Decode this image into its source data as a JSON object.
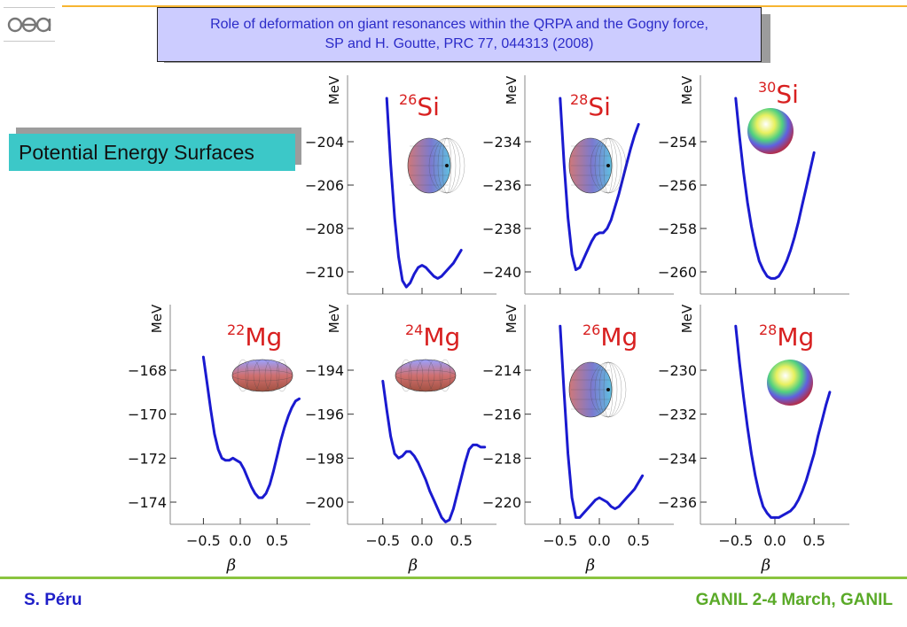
{
  "header": {
    "logo_text": "cea",
    "title_line1": "Role of deformation on giant resonances within the QRPA and the Gogny force,",
    "title_line2": "SP and H. Goutte, PRC 77, 044313 (2008)"
  },
  "section_label": "Potential Energy Surfaces",
  "footer": {
    "author": "S. Péru",
    "event": "GANIL 2-4 March, GANIL"
  },
  "colors": {
    "curve": "#1a1ad0",
    "nucleus_label": "#d82020",
    "title_text": "#2b2bc8",
    "title_bg": "#ccccff",
    "section_bg": "#3cc8c8",
    "footer_left": "#1e1ec8",
    "footer_right": "#5aaa28",
    "top_rule": "#f7b531",
    "bottom_rule": "#8ac43f"
  },
  "chart_data": [
    {
      "type": "line",
      "mass": "26",
      "element": "Si",
      "shape_icon": "oblate-spheroid-icon",
      "ylabel": "MeV",
      "xlim": [
        -0.95,
        0.95
      ],
      "ylim": [
        -211,
        -202
      ],
      "yticks": [
        -204,
        -206,
        -208,
        -210
      ],
      "ytick_labels": [
        "−204",
        "−206",
        "−208",
        "−210"
      ],
      "x": [
        -0.45,
        -0.4,
        -0.35,
        -0.3,
        -0.25,
        -0.2,
        -0.15,
        -0.1,
        -0.05,
        0.0,
        0.05,
        0.1,
        0.15,
        0.2,
        0.25,
        0.3,
        0.35,
        0.4,
        0.45,
        0.5
      ],
      "y": [
        -202.0,
        -205.0,
        -207.5,
        -209.3,
        -210.4,
        -210.7,
        -210.5,
        -210.1,
        -209.8,
        -209.7,
        -209.8,
        -210.0,
        -210.2,
        -210.3,
        -210.2,
        -210.0,
        -209.8,
        -209.6,
        -209.3,
        -209.0
      ]
    },
    {
      "type": "line",
      "mass": "28",
      "element": "Si",
      "shape_icon": "oblate-spheroid-icon",
      "ylabel": "MeV",
      "xlim": [
        -0.95,
        0.95
      ],
      "ylim": [
        -241,
        -232
      ],
      "yticks": [
        -234,
        -236,
        -238,
        -240
      ],
      "ytick_labels": [
        "−234",
        "−236",
        "−238",
        "−240"
      ],
      "x": [
        -0.5,
        -0.45,
        -0.4,
        -0.35,
        -0.3,
        -0.25,
        -0.2,
        -0.15,
        -0.1,
        -0.05,
        0.0,
        0.05,
        0.1,
        0.15,
        0.2,
        0.25,
        0.3,
        0.35,
        0.4,
        0.45,
        0.5
      ],
      "y": [
        -232.0,
        -235.0,
        -237.5,
        -239.2,
        -239.9,
        -239.8,
        -239.4,
        -239.0,
        -238.6,
        -238.3,
        -238.2,
        -238.2,
        -238.0,
        -237.6,
        -237.0,
        -236.4,
        -235.7,
        -235.0,
        -234.3,
        -233.7,
        -233.2
      ]
    },
    {
      "type": "line",
      "mass": "30",
      "element": "Si",
      "shape_icon": "sphere-icon",
      "ylabel": "MeV",
      "xlim": [
        -0.95,
        0.95
      ],
      "ylim": [
        -261,
        -252
      ],
      "yticks": [
        -254,
        -256,
        -258,
        -260
      ],
      "ytick_labels": [
        "−254",
        "−256",
        "−258",
        "−260"
      ],
      "x": [
        -0.5,
        -0.45,
        -0.4,
        -0.35,
        -0.3,
        -0.25,
        -0.2,
        -0.15,
        -0.1,
        -0.05,
        0.0,
        0.05,
        0.1,
        0.15,
        0.2,
        0.25,
        0.3,
        0.35,
        0.4,
        0.45,
        0.5
      ],
      "y": [
        -252.0,
        -253.8,
        -255.4,
        -256.8,
        -257.9,
        -258.8,
        -259.5,
        -259.9,
        -260.2,
        -260.3,
        -260.3,
        -260.2,
        -259.9,
        -259.5,
        -259.0,
        -258.4,
        -257.7,
        -256.9,
        -256.1,
        -255.3,
        -254.5
      ]
    },
    {
      "type": "line",
      "mass": "22",
      "element": "Mg",
      "shape_icon": "prolate-spheroid-icon",
      "ylabel": "MeV",
      "xlim": [
        -0.95,
        0.95
      ],
      "ylim": [
        -175,
        -165
      ],
      "yticks": [
        -168,
        -170,
        -172,
        -174
      ],
      "ytick_labels": [
        "−168",
        "−170",
        "−172",
        "−174"
      ],
      "x": [
        -0.5,
        -0.45,
        -0.4,
        -0.35,
        -0.3,
        -0.25,
        -0.2,
        -0.15,
        -0.1,
        -0.05,
        0.0,
        0.05,
        0.1,
        0.15,
        0.2,
        0.25,
        0.3,
        0.35,
        0.4,
        0.45,
        0.5,
        0.55,
        0.6,
        0.65,
        0.7,
        0.75,
        0.8
      ],
      "y": [
        -167.4,
        -168.6,
        -169.8,
        -170.9,
        -171.6,
        -172.0,
        -172.1,
        -172.1,
        -172.0,
        -172.1,
        -172.2,
        -172.5,
        -172.9,
        -173.3,
        -173.6,
        -173.8,
        -173.8,
        -173.6,
        -173.2,
        -172.6,
        -171.9,
        -171.2,
        -170.6,
        -170.1,
        -169.7,
        -169.4,
        -169.3
      ]
    },
    {
      "type": "line",
      "mass": "24",
      "element": "Mg",
      "shape_icon": "prolate-spheroid-icon",
      "ylabel": "MeV",
      "xlim": [
        -0.95,
        0.95
      ],
      "ylim": [
        -201,
        -191
      ],
      "yticks": [
        -194,
        -196,
        -198,
        -200
      ],
      "ytick_labels": [
        "−194",
        "−196",
        "−198",
        "−200"
      ],
      "x": [
        -0.5,
        -0.45,
        -0.4,
        -0.35,
        -0.3,
        -0.25,
        -0.2,
        -0.15,
        -0.1,
        -0.05,
        0.0,
        0.05,
        0.1,
        0.15,
        0.2,
        0.25,
        0.3,
        0.35,
        0.4,
        0.45,
        0.5,
        0.55,
        0.6,
        0.65,
        0.7,
        0.75,
        0.8
      ],
      "y": [
        -194.5,
        -195.8,
        -197.0,
        -197.8,
        -198.0,
        -197.9,
        -197.7,
        -197.7,
        -197.9,
        -198.2,
        -198.6,
        -199.0,
        -199.5,
        -199.9,
        -200.3,
        -200.7,
        -200.9,
        -200.8,
        -200.3,
        -199.6,
        -198.9,
        -198.2,
        -197.6,
        -197.4,
        -197.4,
        -197.5,
        -197.5
      ]
    },
    {
      "type": "line",
      "mass": "26",
      "element": "Mg",
      "shape_icon": "oblate-spheroid-icon",
      "ylabel": "MeV",
      "xlim": [
        -0.95,
        0.95
      ],
      "ylim": [
        -221,
        -212
      ],
      "yticks": [
        -214,
        -216,
        -218,
        -220
      ],
      "ytick_labels": [
        "−214",
        "−216",
        "−218",
        "−220"
      ],
      "x": [
        -0.5,
        -0.45,
        -0.4,
        -0.35,
        -0.3,
        -0.25,
        -0.2,
        -0.15,
        -0.1,
        -0.05,
        0.0,
        0.05,
        0.1,
        0.15,
        0.2,
        0.25,
        0.3,
        0.35,
        0.4,
        0.45,
        0.5,
        0.55
      ],
      "y": [
        -212.0,
        -215.0,
        -217.8,
        -219.8,
        -220.7,
        -220.7,
        -220.5,
        -220.3,
        -220.1,
        -219.9,
        -219.8,
        -219.9,
        -220.0,
        -220.2,
        -220.3,
        -220.2,
        -220.0,
        -219.8,
        -219.6,
        -219.4,
        -219.1,
        -218.8
      ]
    },
    {
      "type": "line",
      "mass": "28",
      "element": "Mg",
      "shape_icon": "sphere-icon",
      "ylabel": "MeV",
      "xlim": [
        -0.95,
        0.95
      ],
      "ylim": [
        -237,
        -228
      ],
      "yticks": [
        -230,
        -232,
        -234,
        -236
      ],
      "ytick_labels": [
        "−230",
        "−232",
        "−234",
        "−236"
      ],
      "x": [
        -0.5,
        -0.45,
        -0.4,
        -0.35,
        -0.3,
        -0.25,
        -0.2,
        -0.15,
        -0.1,
        -0.05,
        0.0,
        0.05,
        0.1,
        0.15,
        0.2,
        0.25,
        0.3,
        0.35,
        0.4,
        0.45,
        0.5,
        0.55,
        0.6,
        0.65,
        0.7
      ],
      "y": [
        -228.0,
        -229.7,
        -231.2,
        -232.6,
        -233.8,
        -234.8,
        -235.6,
        -236.2,
        -236.5,
        -236.7,
        -236.7,
        -236.7,
        -236.6,
        -236.5,
        -236.4,
        -236.2,
        -235.9,
        -235.5,
        -235.0,
        -234.4,
        -233.8,
        -233.0,
        -232.3,
        -231.6,
        -231.0
      ]
    }
  ],
  "xaxis": {
    "label": "β",
    "ticks": [
      -0.5,
      0.0,
      0.5
    ],
    "tick_labels": [
      "−0.5",
      "0.0",
      "0.5"
    ]
  }
}
